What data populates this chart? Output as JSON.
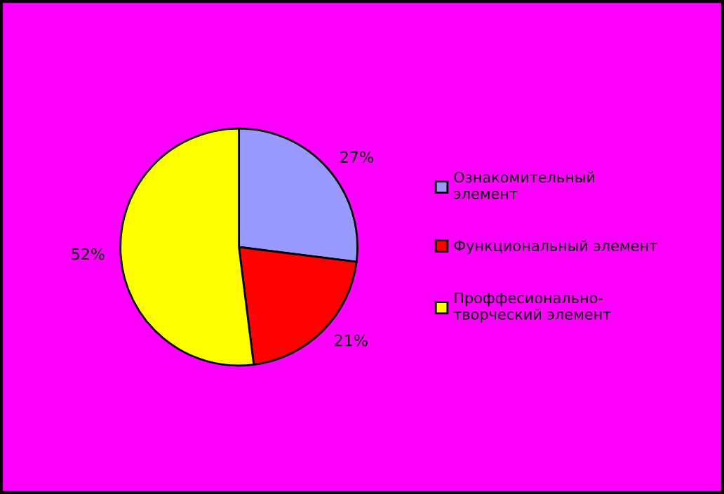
{
  "chart_data": {
    "type": "pie",
    "categories": [
      "Ознакомительный элемент",
      "Функциональный элемент",
      "Проффесионально-творческий элемент"
    ],
    "values": [
      27,
      21,
      52
    ],
    "colors": [
      "#9999ff",
      "#ff0000",
      "#ffff00"
    ],
    "value_labels": [
      "27%",
      "21%",
      "52%"
    ],
    "legend": "right"
  }
}
